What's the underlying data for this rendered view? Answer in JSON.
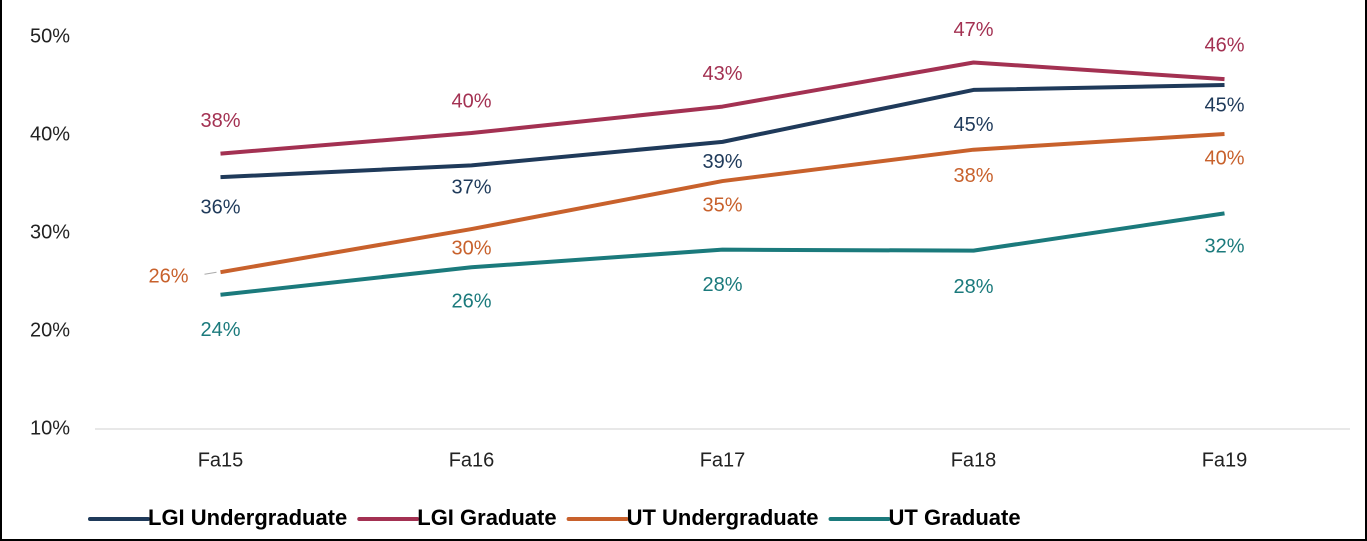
{
  "chart_data": {
    "type": "line",
    "categories": [
      "Fa15",
      "Fa16",
      "Fa17",
      "Fa18",
      "Fa19"
    ],
    "series": [
      {
        "name": "LGI Undergraduate",
        "color": "#1f3a5a",
        "values": [
          35.7,
          36.9,
          39.3,
          44.6,
          45.1
        ],
        "value_labels": [
          "36%",
          "37%",
          "39%",
          "45%",
          "45%"
        ]
      },
      {
        "name": "LGI Graduate",
        "color": "#a33152",
        "values": [
          38.1,
          40.2,
          42.9,
          47.4,
          45.7
        ],
        "value_labels": [
          "38%",
          "40%",
          "43%",
          "47%",
          "46%"
        ]
      },
      {
        "name": "UT Undergraduate",
        "color": "#c8612c",
        "values": [
          26.0,
          30.4,
          35.3,
          38.5,
          40.1
        ],
        "value_labels": [
          "26%",
          "30%",
          "35%",
          "38%",
          "40%"
        ]
      },
      {
        "name": "UT Graduate",
        "color": "#1b7a7c",
        "values": [
          23.7,
          26.5,
          28.3,
          28.2,
          32.0
        ],
        "value_labels": [
          "24%",
          "26%",
          "28%",
          "28%",
          "32%"
        ]
      }
    ],
    "ylim": [
      10,
      50
    ],
    "yticks": [
      {
        "value": 10,
        "label": "10%"
      },
      {
        "value": 20,
        "label": "20%"
      },
      {
        "value": 30,
        "label": "30%"
      },
      {
        "value": 40,
        "label": "40%"
      },
      {
        "value": 50,
        "label": "50%"
      }
    ],
    "grid": false,
    "legend": "bottom"
  }
}
